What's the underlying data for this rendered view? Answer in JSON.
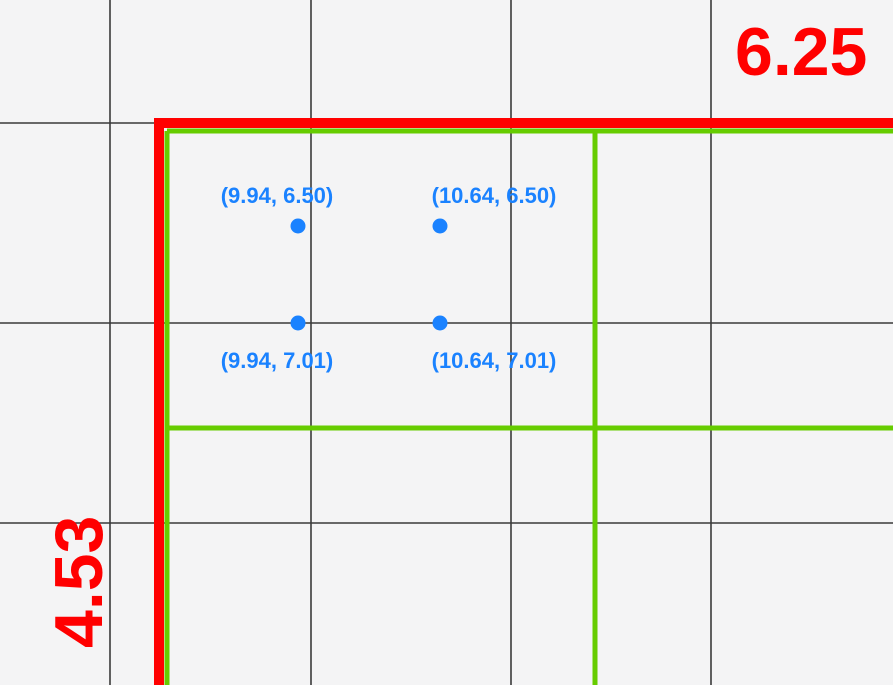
{
  "colors": {
    "background": "#f4f4f5",
    "grid": "#3a3a3a",
    "red": "#ff0000",
    "green": "#66cc00",
    "blue": "#1a82ff"
  },
  "measurements": {
    "top_right": "6.25",
    "left_vertical": "4.53"
  },
  "points": [
    {
      "label": "(9.94, 6.50)"
    },
    {
      "label": "(10.64, 6.50)"
    },
    {
      "label": "(9.94, 7.01)"
    },
    {
      "label": "(10.64, 7.01)"
    }
  ]
}
